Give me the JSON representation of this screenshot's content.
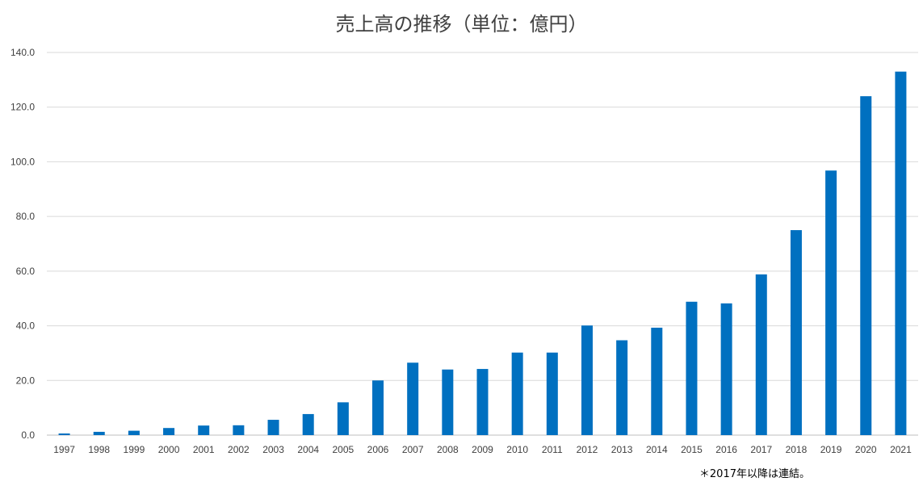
{
  "chart_data": {
    "type": "bar",
    "title": "売上高の推移（単位：億円）",
    "xlabel": "",
    "ylabel": "",
    "categories": [
      "1997",
      "1998",
      "1999",
      "2000",
      "2001",
      "2002",
      "2003",
      "2004",
      "2005",
      "2006",
      "2007",
      "2008",
      "2009",
      "2010",
      "2011",
      "2012",
      "2013",
      "2014",
      "2015",
      "2016",
      "2017",
      "2018",
      "2019",
      "2020",
      "2021"
    ],
    "values": [
      0.6,
      1.2,
      1.6,
      2.6,
      3.5,
      3.6,
      5.6,
      7.7,
      12.0,
      20.0,
      26.5,
      24.0,
      24.2,
      30.2,
      30.2,
      40.1,
      34.7,
      39.3,
      48.8,
      48.2,
      58.8,
      75.0,
      96.8,
      124.0,
      133.0
    ],
    "ylim": [
      0,
      140
    ],
    "yticks": [
      "0.0",
      "20.0",
      "40.0",
      "60.0",
      "80.0",
      "100.0",
      "120.0",
      "140.0"
    ],
    "grid": true,
    "legend": "none",
    "bar_color": "#0070C0",
    "grid_color": "#D9D9D9",
    "footnote": "＊2017年以降は連結。"
  }
}
